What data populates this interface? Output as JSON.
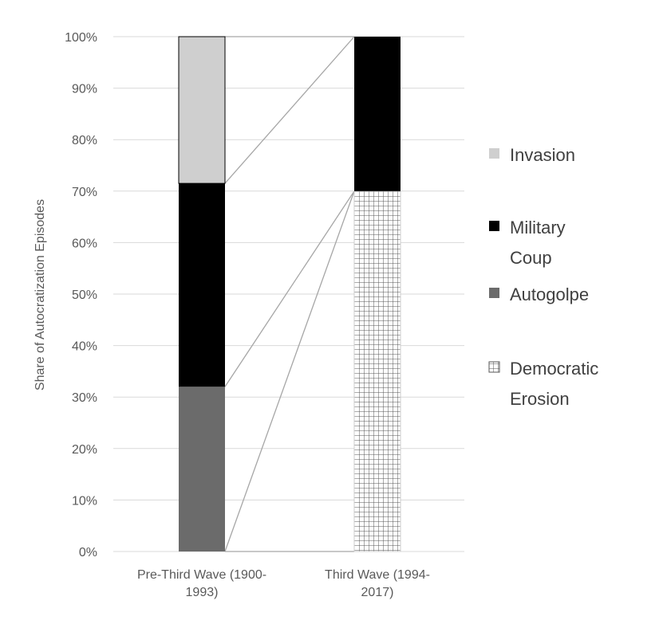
{
  "chart_data": {
    "type": "bar",
    "stacked": true,
    "percent_stacked": true,
    "xlabel": "",
    "ylabel": "Share of Autocratization Episodes",
    "ylim": [
      0,
      100
    ],
    "ytick_labels": [
      "0%",
      "10%",
      "20%",
      "30%",
      "40%",
      "50%",
      "60%",
      "70%",
      "80%",
      "90%",
      "100%"
    ],
    "grid": true,
    "legend_position": "right",
    "series_lines": true,
    "categories": [
      [
        "Pre-Third Wave (1900-",
        "1993)"
      ],
      [
        "Third Wave (1994-",
        "2017)"
      ]
    ],
    "series": [
      {
        "name": "Democratic Erosion",
        "legend_lines": [
          "Democratic",
          "Erosion"
        ],
        "values": [
          0,
          70
        ],
        "color": "#ffffff",
        "pattern": "grid"
      },
      {
        "name": "Autogolpe",
        "legend_lines": [
          "Autogolpe"
        ],
        "values": [
          32,
          0
        ],
        "color": "#6b6b6b"
      },
      {
        "name": "Military Coup",
        "legend_lines": [
          "Military",
          "Coup"
        ],
        "values": [
          39.5,
          30
        ],
        "color": "#000000"
      },
      {
        "name": "Invasion",
        "legend_lines": [
          "Invasion"
        ],
        "values": [
          28.5,
          0
        ],
        "color": "#cfcfcf"
      }
    ],
    "legend_order": [
      "Invasion",
      "Military Coup",
      "Autogolpe",
      "Democratic Erosion"
    ]
  }
}
